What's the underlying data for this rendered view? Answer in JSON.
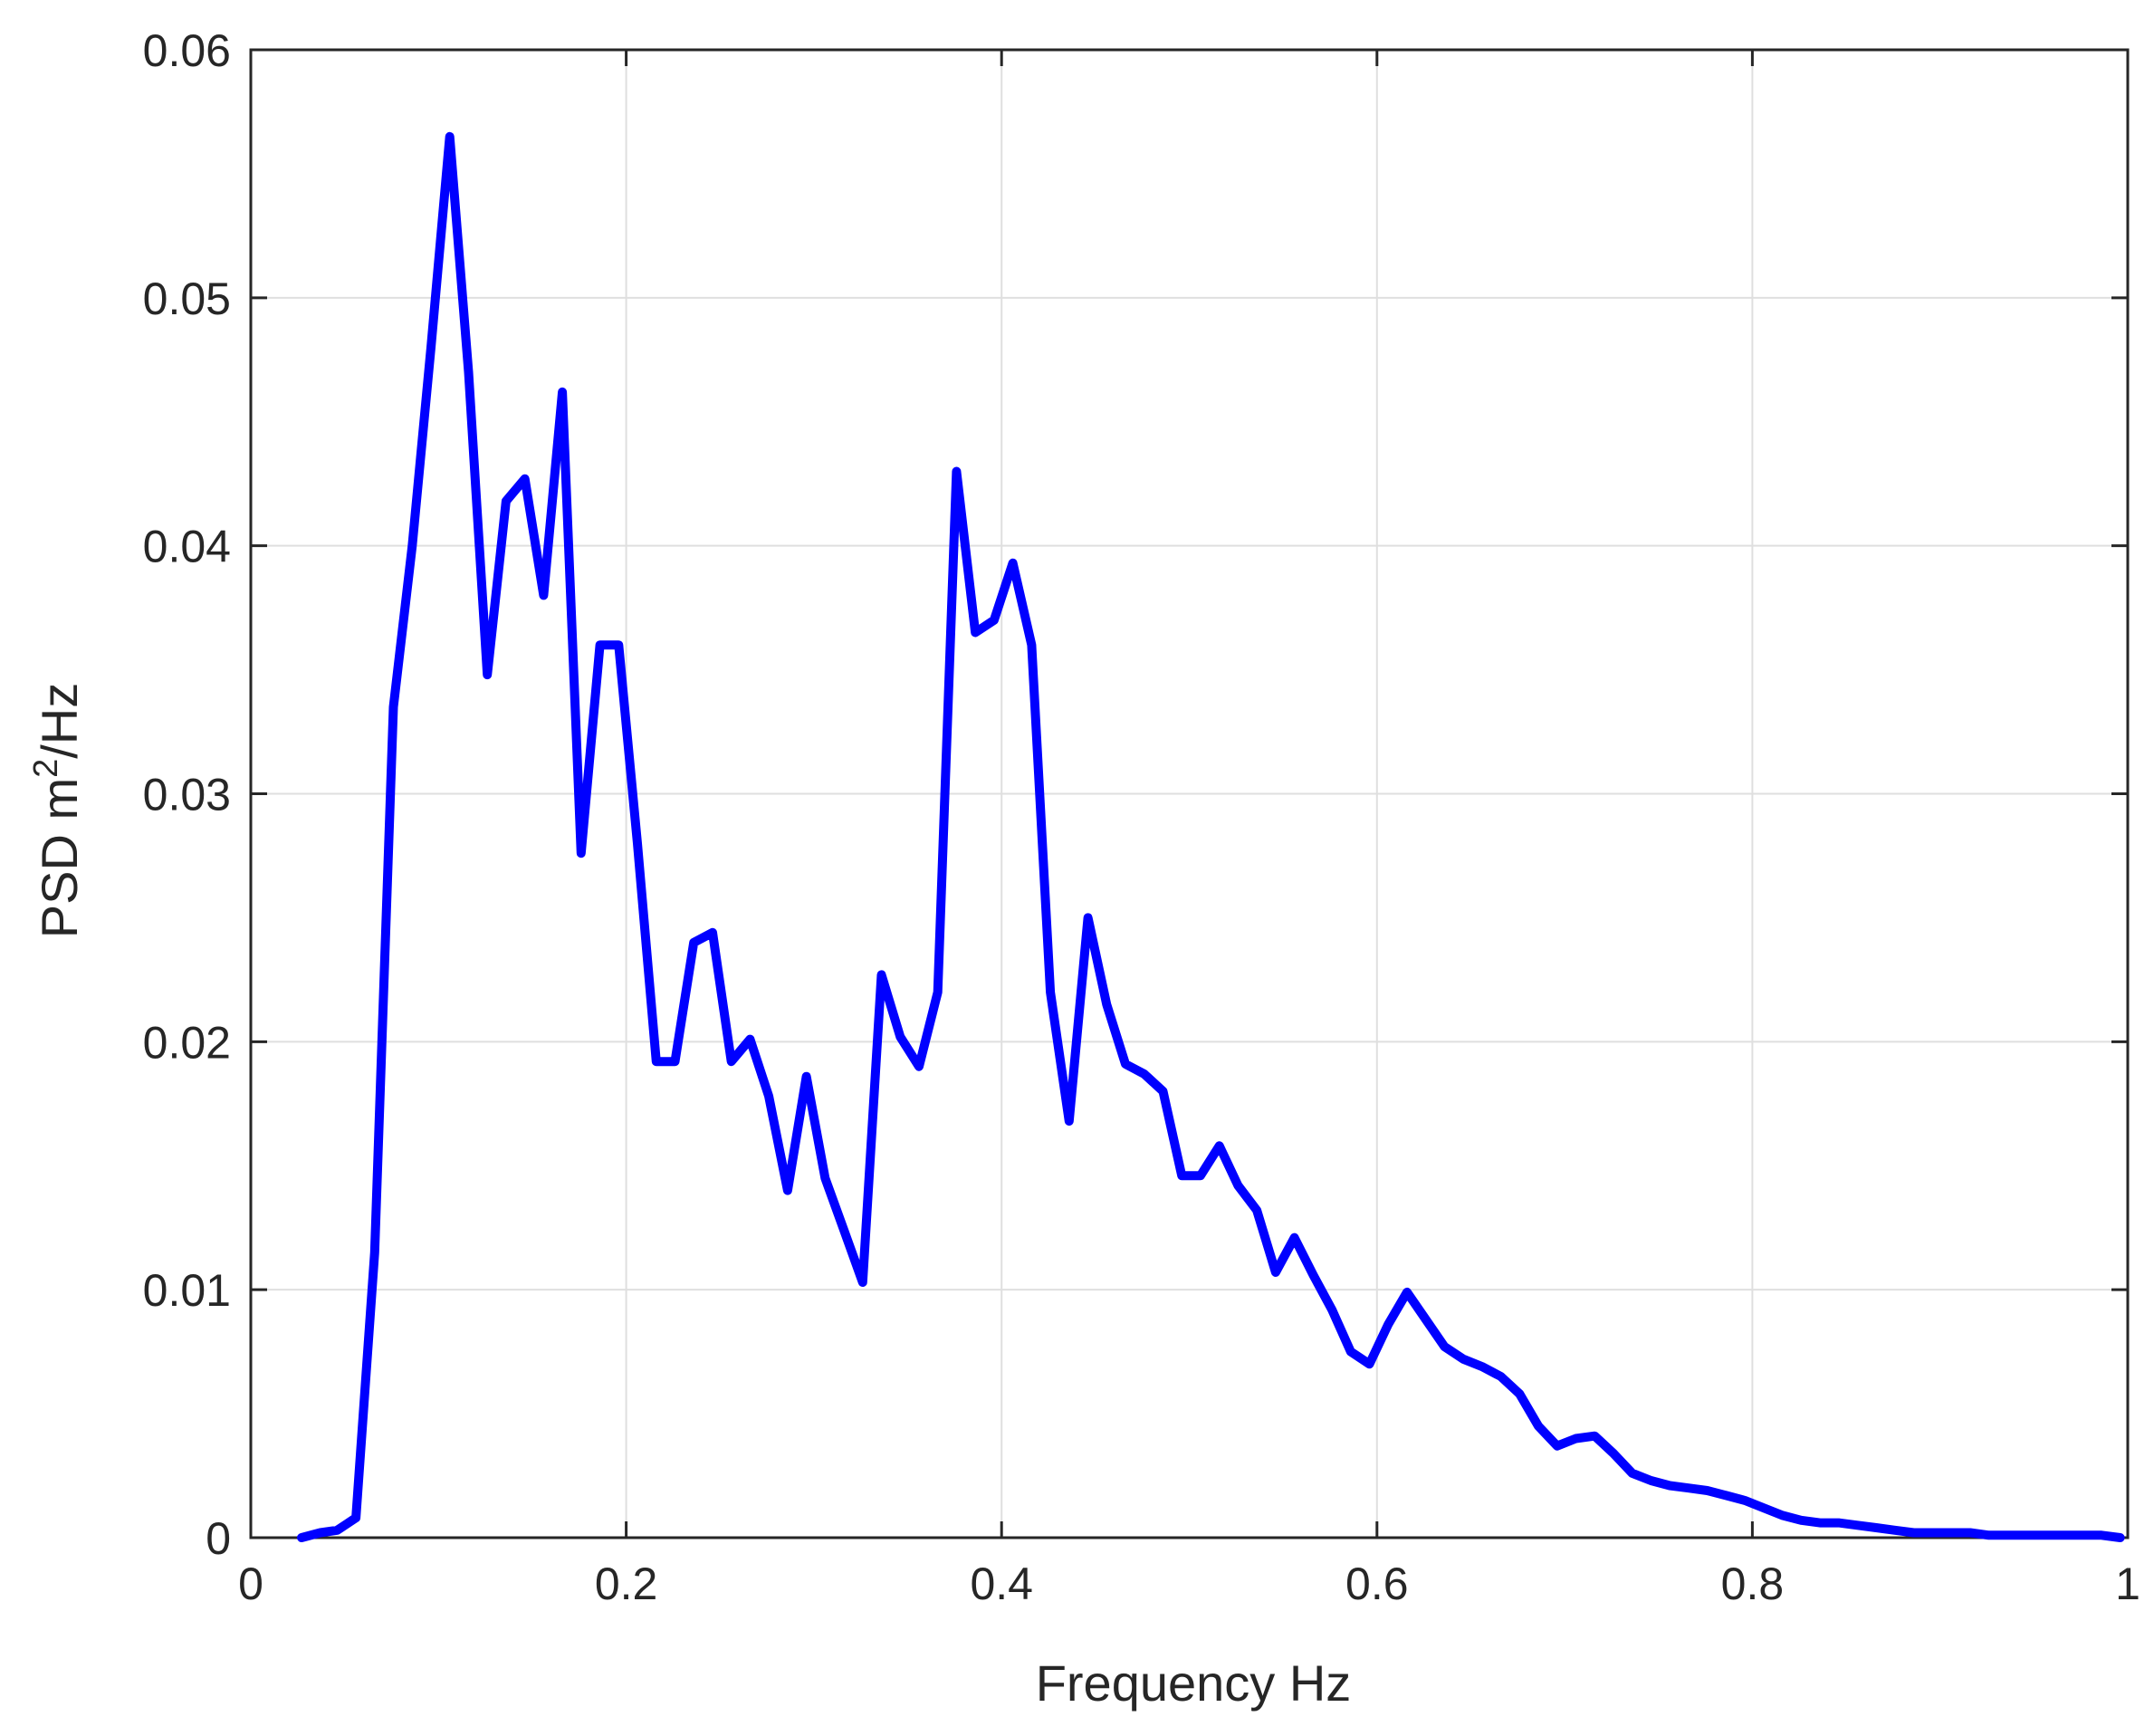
{
  "chart_data": {
    "type": "line",
    "title": "",
    "xlabel": "Frequency Hz",
    "ylabel_main": "PSD m",
    "ylabel_sup": "2",
    "ylabel_tail": "/Hz",
    "xlim": [
      0,
      1
    ],
    "ylim": [
      0,
      0.06
    ],
    "xticks": [
      0,
      0.2,
      0.4,
      0.6,
      0.8,
      1
    ],
    "xtick_labels": [
      "0",
      "0.2",
      "0.4",
      "0.6",
      "0.8",
      "1"
    ],
    "yticks": [
      0,
      0.01,
      0.02,
      0.03,
      0.04,
      0.05,
      0.06
    ],
    "ytick_labels": [
      "0",
      "0.01",
      "0.02",
      "0.03",
      "0.04",
      "0.05",
      "0.06"
    ],
    "grid": true,
    "line_color": "#0000ff",
    "series": [
      {
        "x": [
          0.027,
          0.037,
          0.046,
          0.056,
          0.066,
          0.076,
          0.086,
          0.096,
          0.106,
          0.116,
          0.126,
          0.136,
          0.146,
          0.156,
          0.166,
          0.176,
          0.186,
          0.196,
          0.206,
          0.216,
          0.226,
          0.236,
          0.246,
          0.256,
          0.266,
          0.276,
          0.286,
          0.296,
          0.306,
          0.316,
          0.326,
          0.336,
          0.346,
          0.356,
          0.366,
          0.376,
          0.386,
          0.396,
          0.406,
          0.416,
          0.426,
          0.436,
          0.446,
          0.456,
          0.466,
          0.476,
          0.486,
          0.496,
          0.506,
          0.516,
          0.526,
          0.536,
          0.546,
          0.556,
          0.566,
          0.576,
          0.586,
          0.596,
          0.606,
          0.616,
          0.626,
          0.636,
          0.646,
          0.656,
          0.666,
          0.676,
          0.686,
          0.696,
          0.706,
          0.716,
          0.726,
          0.736,
          0.746,
          0.756,
          0.766,
          0.776,
          0.786,
          0.796,
          0.806,
          0.816,
          0.826,
          0.836,
          0.846,
          0.856,
          0.866,
          0.876,
          0.886,
          0.896,
          0.906,
          0.916,
          0.926,
          0.936,
          0.946,
          0.956,
          0.966,
          0.976,
          0.986,
          0.996
        ],
        "y": [
          0.0,
          0.0002,
          0.0003,
          0.0008,
          0.0115,
          0.0335,
          0.04,
          0.048,
          0.0565,
          0.047,
          0.0348,
          0.0418,
          0.0427,
          0.038,
          0.0462,
          0.0276,
          0.036,
          0.036,
          0.028,
          0.0192,
          0.0192,
          0.024,
          0.0244,
          0.0192,
          0.0201,
          0.0178,
          0.014,
          0.0186,
          0.0145,
          0.0124,
          0.0103,
          0.0227,
          0.0202,
          0.019,
          0.022,
          0.043,
          0.0365,
          0.037,
          0.0393,
          0.036,
          0.022,
          0.0168,
          0.025,
          0.0215,
          0.0191,
          0.0187,
          0.018,
          0.0146,
          0.0146,
          0.0158,
          0.0142,
          0.0132,
          0.0107,
          0.0121,
          0.0106,
          0.0092,
          0.0075,
          0.007,
          0.0086,
          0.0099,
          0.0088,
          0.0077,
          0.0072,
          0.0069,
          0.0065,
          0.0058,
          0.0045,
          0.0037,
          0.004,
          0.0041,
          0.0034,
          0.0026,
          0.0023,
          0.0021,
          0.002,
          0.0019,
          0.0017,
          0.0015,
          0.0012,
          0.0009,
          0.0007,
          0.0006,
          0.0006,
          0.0005,
          0.0004,
          0.0003,
          0.0002,
          0.0002,
          0.0002,
          0.0002,
          0.0001,
          0.0001,
          0.0001,
          0.0001,
          0.0001,
          0.0001,
          0.0001,
          0.0
        ]
      }
    ]
  }
}
